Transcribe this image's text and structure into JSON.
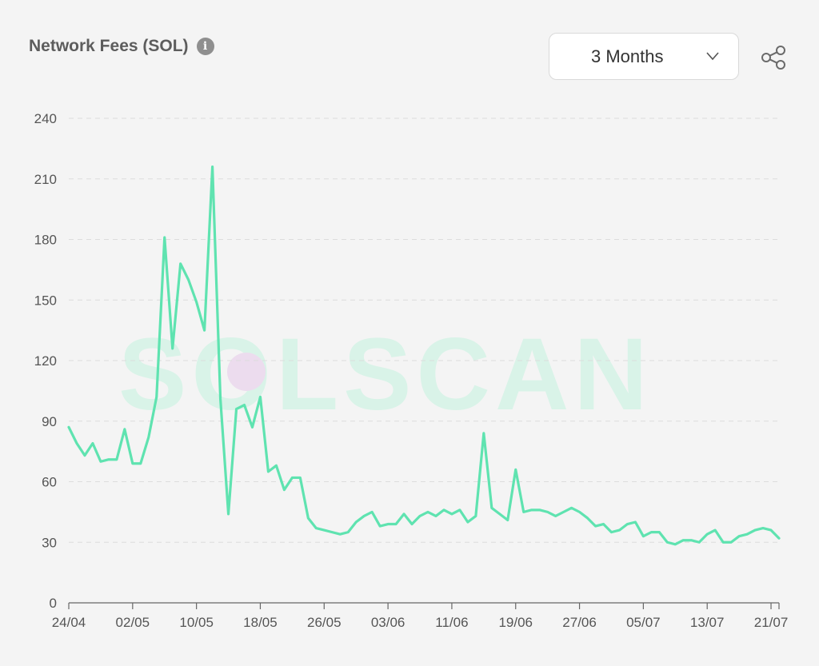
{
  "header": {
    "title": "Network Fees (SOL)",
    "info_icon": "info-icon"
  },
  "range_selector": {
    "selected": "3 Months",
    "icon": "chevron-down-icon"
  },
  "share": {
    "icon": "share-icon"
  },
  "watermark": "SOLSCAN",
  "colors": {
    "line": "#5fe3b0",
    "grid": "#dcdcdc",
    "axis": "#666666",
    "watermark": "#d9f3e8"
  },
  "chart_data": {
    "type": "line",
    "title": "Network Fees (SOL)",
    "xlabel": "",
    "ylabel": "",
    "ylim": [
      0,
      240
    ],
    "yticks": [
      0,
      30,
      60,
      90,
      120,
      150,
      180,
      210,
      240
    ],
    "grid": true,
    "x_tick_labels": [
      "24/04",
      "02/05",
      "10/05",
      "18/05",
      "26/05",
      "03/06",
      "11/06",
      "19/06",
      "27/06",
      "05/07",
      "13/07",
      "21/07"
    ],
    "x_tick_day_index": [
      0,
      8,
      16,
      24,
      32,
      40,
      48,
      56,
      64,
      72,
      80,
      88
    ],
    "series": [
      {
        "values": [
          87,
          79,
          73,
          79,
          70,
          71,
          71,
          86,
          69,
          69,
          82,
          102,
          181,
          126,
          168,
          160,
          149,
          135,
          216,
          101,
          44,
          96,
          98,
          87,
          102,
          65,
          68,
          56,
          62,
          62,
          42,
          37,
          36,
          35,
          34,
          35,
          40,
          43,
          45,
          38,
          39,
          39,
          44,
          39,
          43,
          45,
          43,
          46,
          44,
          46,
          40,
          43,
          84,
          47,
          44,
          41,
          66,
          45,
          46,
          46,
          45,
          43,
          45,
          47,
          45,
          42,
          38,
          39,
          35,
          36,
          39,
          40,
          33,
          35,
          35,
          30,
          29,
          31,
          31,
          30,
          34,
          36,
          30,
          30,
          33,
          34,
          36,
          37,
          36,
          32
        ]
      }
    ]
  }
}
